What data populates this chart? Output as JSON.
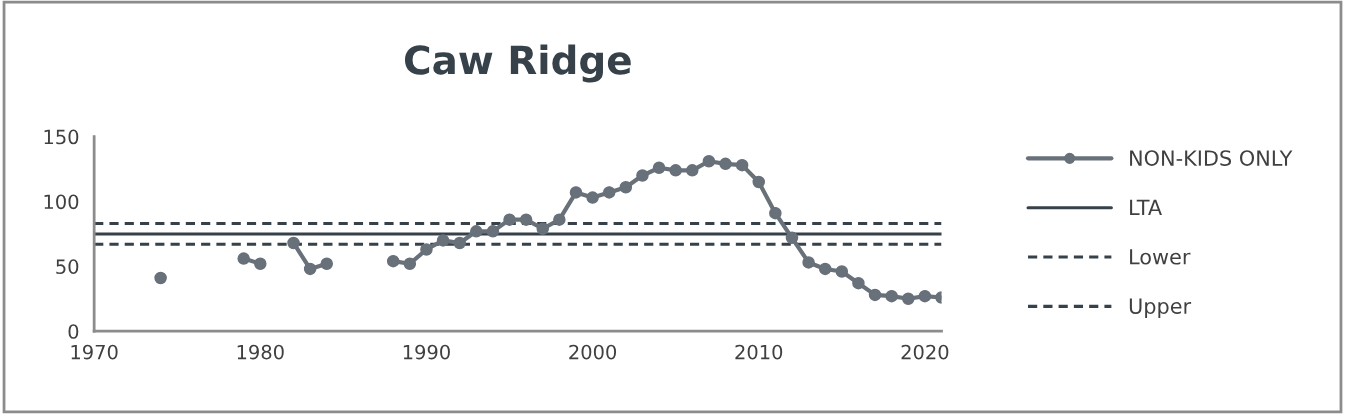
{
  "chart_data": {
    "type": "line",
    "title": "Caw Ridge",
    "xlim": [
      1970,
      2021
    ],
    "xticks": [
      1970,
      1980,
      1990,
      2000,
      2010,
      2020
    ],
    "ylim": [
      0,
      150
    ],
    "yticks": [
      0,
      50,
      100,
      150
    ],
    "grid": false,
    "legend": "right",
    "x": [
      1974,
      1975,
      1976,
      1977,
      1978,
      1979,
      1980,
      1981,
      1982,
      1983,
      1984,
      1985,
      1986,
      1987,
      1988,
      1989,
      1990,
      1991,
      1992,
      1993,
      1994,
      1995,
      1996,
      1997,
      1998,
      1999,
      2000,
      2001,
      2002,
      2003,
      2004,
      2005,
      2006,
      2007,
      2008,
      2009,
      2010,
      2011,
      2012,
      2013,
      2014,
      2015,
      2016,
      2017,
      2018,
      2019,
      2020,
      2021
    ],
    "series": [
      {
        "name": "NON-KIDS ONLY",
        "color": "#68707a",
        "marker": "circle",
        "line_style": "solid",
        "values": [
          41,
          null,
          null,
          null,
          null,
          56,
          52,
          null,
          68,
          48,
          52,
          null,
          null,
          null,
          54,
          52,
          63,
          70,
          68,
          77,
          77,
          86,
          86,
          79,
          86,
          107,
          103,
          107,
          111,
          120,
          126,
          124,
          124,
          131,
          129,
          128,
          115,
          91,
          72,
          53,
          48,
          46,
          37,
          28,
          27,
          25,
          27,
          26
        ]
      }
    ],
    "ref_lines": [
      {
        "axis": "y",
        "value": 75,
        "label": "LTA",
        "color": "#36414a",
        "line_style": "solid"
      },
      {
        "axis": "y",
        "value": 67,
        "label": "Lower",
        "color": "#36414a",
        "line_style": "dashed"
      },
      {
        "axis": "y",
        "value": 83,
        "label": "Upper",
        "color": "#36414a",
        "line_style": "dashed"
      }
    ]
  }
}
